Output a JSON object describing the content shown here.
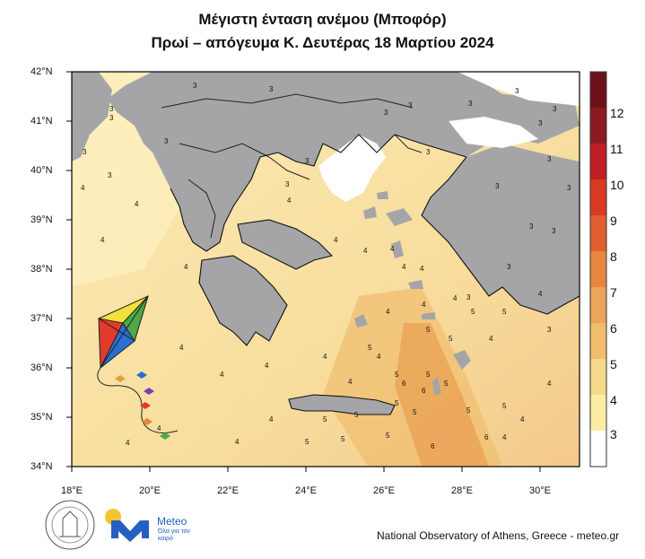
{
  "title_line1": "Μέγιστη ένταση ανέμου (Μποφόρ)",
  "title_line2": "Πρωί – απόγευμα Κ. Δευτέρας 18 Μαρτίου 2024",
  "lat_labels": [
    "42°N",
    "41°N",
    "40°N",
    "39°N",
    "38°N",
    "37°N",
    "36°N",
    "35°N",
    "34°N"
  ],
  "lon_labels": [
    "18°E",
    "20°E",
    "22°E",
    "24°E",
    "26°E",
    "28°E",
    "30°E"
  ],
  "colorbar": {
    "levels": [
      "12",
      "11",
      "10",
      "9",
      "8",
      "7",
      "6",
      "5",
      "4",
      "3"
    ],
    "colors": [
      "#ffffff",
      "#fbeda4",
      "#f6d98a",
      "#efbd6d",
      "#eba458",
      "#e7873f",
      "#e15f2f",
      "#d93a24",
      "#be2026",
      "#8e1a21",
      "#6c1119"
    ]
  },
  "map_labels": [
    "3",
    "3",
    "3",
    "3",
    "3",
    "3",
    "3",
    "3",
    "3",
    "3",
    "3",
    "3",
    "3",
    "3",
    "3",
    "3",
    "3",
    "3",
    "3",
    "3",
    "3",
    "3",
    "3",
    "3",
    "4",
    "4",
    "4",
    "4",
    "4",
    "4",
    "4",
    "4",
    "4",
    "4",
    "4",
    "4",
    "4",
    "4",
    "4",
    "4",
    "4",
    "4",
    "4",
    "4",
    "4",
    "4",
    "4",
    "4",
    "4",
    "4",
    "4",
    "4",
    "5",
    "5",
    "5",
    "5",
    "5",
    "5",
    "5",
    "5",
    "5",
    "5",
    "5",
    "5",
    "5",
    "5",
    "5",
    "5",
    "5",
    "6",
    "6",
    "6",
    "6"
  ],
  "meteo_name": "Meteo",
  "meteo_tagline": "Όλα για τον καιρό",
  "footer": "National Observatory of Athens, Greece - meteo.gr"
}
